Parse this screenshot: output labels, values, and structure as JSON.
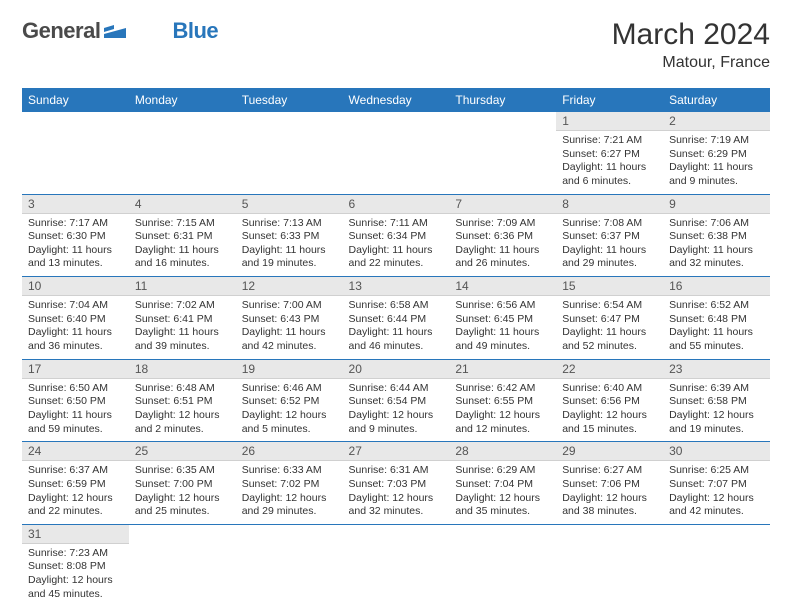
{
  "brand": {
    "part1": "General",
    "part2": "Blue"
  },
  "title": "March 2024",
  "location": "Matour, France",
  "colors": {
    "header_bg": "#2876bb",
    "header_fg": "#ffffff",
    "daynum_bg": "#e8e8e8",
    "border": "#2876bb",
    "text": "#333333",
    "logo_gray": "#4a4a4a",
    "logo_blue": "#2876bb"
  },
  "weekdays": [
    "Sunday",
    "Monday",
    "Tuesday",
    "Wednesday",
    "Thursday",
    "Friday",
    "Saturday"
  ],
  "weeks": [
    [
      null,
      null,
      null,
      null,
      null,
      {
        "n": "1",
        "sr": "Sunrise: 7:21 AM",
        "ss": "Sunset: 6:27 PM",
        "d1": "Daylight: 11 hours",
        "d2": "and 6 minutes."
      },
      {
        "n": "2",
        "sr": "Sunrise: 7:19 AM",
        "ss": "Sunset: 6:29 PM",
        "d1": "Daylight: 11 hours",
        "d2": "and 9 minutes."
      }
    ],
    [
      {
        "n": "3",
        "sr": "Sunrise: 7:17 AM",
        "ss": "Sunset: 6:30 PM",
        "d1": "Daylight: 11 hours",
        "d2": "and 13 minutes."
      },
      {
        "n": "4",
        "sr": "Sunrise: 7:15 AM",
        "ss": "Sunset: 6:31 PM",
        "d1": "Daylight: 11 hours",
        "d2": "and 16 minutes."
      },
      {
        "n": "5",
        "sr": "Sunrise: 7:13 AM",
        "ss": "Sunset: 6:33 PM",
        "d1": "Daylight: 11 hours",
        "d2": "and 19 minutes."
      },
      {
        "n": "6",
        "sr": "Sunrise: 7:11 AM",
        "ss": "Sunset: 6:34 PM",
        "d1": "Daylight: 11 hours",
        "d2": "and 22 minutes."
      },
      {
        "n": "7",
        "sr": "Sunrise: 7:09 AM",
        "ss": "Sunset: 6:36 PM",
        "d1": "Daylight: 11 hours",
        "d2": "and 26 minutes."
      },
      {
        "n": "8",
        "sr": "Sunrise: 7:08 AM",
        "ss": "Sunset: 6:37 PM",
        "d1": "Daylight: 11 hours",
        "d2": "and 29 minutes."
      },
      {
        "n": "9",
        "sr": "Sunrise: 7:06 AM",
        "ss": "Sunset: 6:38 PM",
        "d1": "Daylight: 11 hours",
        "d2": "and 32 minutes."
      }
    ],
    [
      {
        "n": "10",
        "sr": "Sunrise: 7:04 AM",
        "ss": "Sunset: 6:40 PM",
        "d1": "Daylight: 11 hours",
        "d2": "and 36 minutes."
      },
      {
        "n": "11",
        "sr": "Sunrise: 7:02 AM",
        "ss": "Sunset: 6:41 PM",
        "d1": "Daylight: 11 hours",
        "d2": "and 39 minutes."
      },
      {
        "n": "12",
        "sr": "Sunrise: 7:00 AM",
        "ss": "Sunset: 6:43 PM",
        "d1": "Daylight: 11 hours",
        "d2": "and 42 minutes."
      },
      {
        "n": "13",
        "sr": "Sunrise: 6:58 AM",
        "ss": "Sunset: 6:44 PM",
        "d1": "Daylight: 11 hours",
        "d2": "and 46 minutes."
      },
      {
        "n": "14",
        "sr": "Sunrise: 6:56 AM",
        "ss": "Sunset: 6:45 PM",
        "d1": "Daylight: 11 hours",
        "d2": "and 49 minutes."
      },
      {
        "n": "15",
        "sr": "Sunrise: 6:54 AM",
        "ss": "Sunset: 6:47 PM",
        "d1": "Daylight: 11 hours",
        "d2": "and 52 minutes."
      },
      {
        "n": "16",
        "sr": "Sunrise: 6:52 AM",
        "ss": "Sunset: 6:48 PM",
        "d1": "Daylight: 11 hours",
        "d2": "and 55 minutes."
      }
    ],
    [
      {
        "n": "17",
        "sr": "Sunrise: 6:50 AM",
        "ss": "Sunset: 6:50 PM",
        "d1": "Daylight: 11 hours",
        "d2": "and 59 minutes."
      },
      {
        "n": "18",
        "sr": "Sunrise: 6:48 AM",
        "ss": "Sunset: 6:51 PM",
        "d1": "Daylight: 12 hours",
        "d2": "and 2 minutes."
      },
      {
        "n": "19",
        "sr": "Sunrise: 6:46 AM",
        "ss": "Sunset: 6:52 PM",
        "d1": "Daylight: 12 hours",
        "d2": "and 5 minutes."
      },
      {
        "n": "20",
        "sr": "Sunrise: 6:44 AM",
        "ss": "Sunset: 6:54 PM",
        "d1": "Daylight: 12 hours",
        "d2": "and 9 minutes."
      },
      {
        "n": "21",
        "sr": "Sunrise: 6:42 AM",
        "ss": "Sunset: 6:55 PM",
        "d1": "Daylight: 12 hours",
        "d2": "and 12 minutes."
      },
      {
        "n": "22",
        "sr": "Sunrise: 6:40 AM",
        "ss": "Sunset: 6:56 PM",
        "d1": "Daylight: 12 hours",
        "d2": "and 15 minutes."
      },
      {
        "n": "23",
        "sr": "Sunrise: 6:39 AM",
        "ss": "Sunset: 6:58 PM",
        "d1": "Daylight: 12 hours",
        "d2": "and 19 minutes."
      }
    ],
    [
      {
        "n": "24",
        "sr": "Sunrise: 6:37 AM",
        "ss": "Sunset: 6:59 PM",
        "d1": "Daylight: 12 hours",
        "d2": "and 22 minutes."
      },
      {
        "n": "25",
        "sr": "Sunrise: 6:35 AM",
        "ss": "Sunset: 7:00 PM",
        "d1": "Daylight: 12 hours",
        "d2": "and 25 minutes."
      },
      {
        "n": "26",
        "sr": "Sunrise: 6:33 AM",
        "ss": "Sunset: 7:02 PM",
        "d1": "Daylight: 12 hours",
        "d2": "and 29 minutes."
      },
      {
        "n": "27",
        "sr": "Sunrise: 6:31 AM",
        "ss": "Sunset: 7:03 PM",
        "d1": "Daylight: 12 hours",
        "d2": "and 32 minutes."
      },
      {
        "n": "28",
        "sr": "Sunrise: 6:29 AM",
        "ss": "Sunset: 7:04 PM",
        "d1": "Daylight: 12 hours",
        "d2": "and 35 minutes."
      },
      {
        "n": "29",
        "sr": "Sunrise: 6:27 AM",
        "ss": "Sunset: 7:06 PM",
        "d1": "Daylight: 12 hours",
        "d2": "and 38 minutes."
      },
      {
        "n": "30",
        "sr": "Sunrise: 6:25 AM",
        "ss": "Sunset: 7:07 PM",
        "d1": "Daylight: 12 hours",
        "d2": "and 42 minutes."
      }
    ],
    [
      {
        "n": "31",
        "sr": "Sunrise: 7:23 AM",
        "ss": "Sunset: 8:08 PM",
        "d1": "Daylight: 12 hours",
        "d2": "and 45 minutes."
      },
      null,
      null,
      null,
      null,
      null,
      null
    ]
  ]
}
